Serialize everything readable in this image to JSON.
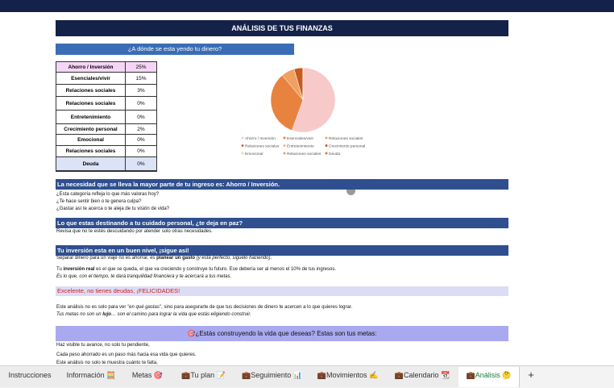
{
  "title": "ANÁLISIS DE TUS FINANZAS",
  "subtitle": "¿A dónde se esta yendo tu dinero?",
  "table": {
    "rows": [
      {
        "label": "Ahorro / Inversión",
        "value": 25,
        "display": "25%"
      },
      {
        "label": "Esenciales/vivir",
        "value": 15,
        "display": "15%"
      },
      {
        "label": "Relaciones sociales",
        "value": 3,
        "display": "3%"
      },
      {
        "label": "Relaciones sociales",
        "value": 0,
        "display": "0%"
      },
      {
        "label": "Entretenimiento",
        "value": 0,
        "display": "0%"
      },
      {
        "label": "Crecimiento personal",
        "value": 2,
        "display": "2%"
      },
      {
        "label": "Emocional",
        "value": 0,
        "display": "0%"
      },
      {
        "label": "Relaciones sociales",
        "value": 0,
        "display": "0%"
      },
      {
        "label": "Deuda",
        "value": 0,
        "display": "0%"
      }
    ]
  },
  "pie_colors": [
    "#f7c9c9",
    "#e8823f",
    "#f0a060",
    "#d9662a",
    "#f2b38a",
    "#c85a1e",
    "#f5d0b0",
    "#e59a6b",
    "#cc7744"
  ],
  "sections": {
    "s1": {
      "heading": "La necesidad que se lleva la mayor parte de tu ingreso es: Ahorro / Inversión.",
      "lines": [
        "¿Esta categoría refleja lo que más valoras hoy?",
        "¿Te hace sentir bien o te genera culpa?",
        "¿Gastar así te acerca o te aleja de tu visión de vida?"
      ]
    },
    "s2": {
      "heading": "Lo que estas destinando a tu cuidado personal, ¿te deja en paz?",
      "lines": [
        "Revisa que no te estés descuidando por atender solo otras necesidades."
      ]
    },
    "s3": {
      "heading": "Tu inversión esta en un buen nivel, ¡sigue así!",
      "p1": [
        "Separar dinero para un viaje no es ahorrar, es ",
        "planear un gasto",
        " (y está perfecto, siguelo haciendo)."
      ],
      "p2": [
        "Tu ",
        "inversión real",
        " es el que se queda, el que va creciendo y construye tu futuro. Ese debería ser al menos el 10% de tus ingresos."
      ],
      "p3": "Es lo que, con el tiempo, te dará tranquilidad financiera y te acercará a tus metas."
    },
    "s4": {
      "heading": "Excelente, no tienes deudas, ¡FELICIDADES!",
      "p1": [
        "Este análisis no es solo para ver ",
        "\"en qué gastas\"",
        ", sino para asegurarte de que tus decisiones de dinero te acercen a lo que quieres lograr."
      ],
      "p2": [
        "Tus metas no son un ",
        "lujo",
        "… son el camino para lograr la vida que estás eligiendo construir."
      ]
    },
    "s5": {
      "heading": "🎯¿Estás construyendo la vida que deseas? Estas son tus metas:",
      "lines": [
        "Haz visible tu avance, no solo tu pendiente,",
        "Cada peso ahorrado es un paso más hacia esa vida que quieres.",
        "Este análisis no solo te muestra cuánto te falta,"
      ]
    }
  },
  "tabs": [
    "Instrucciones",
    "Información 🧮",
    "Metas 🎯",
    "💼Tu plan 📝",
    "💼Seguimiento 📊",
    "💼Movimientos ✍️",
    "💼Calendario 📆",
    "💼Análisis 🤔",
    "+"
  ]
}
